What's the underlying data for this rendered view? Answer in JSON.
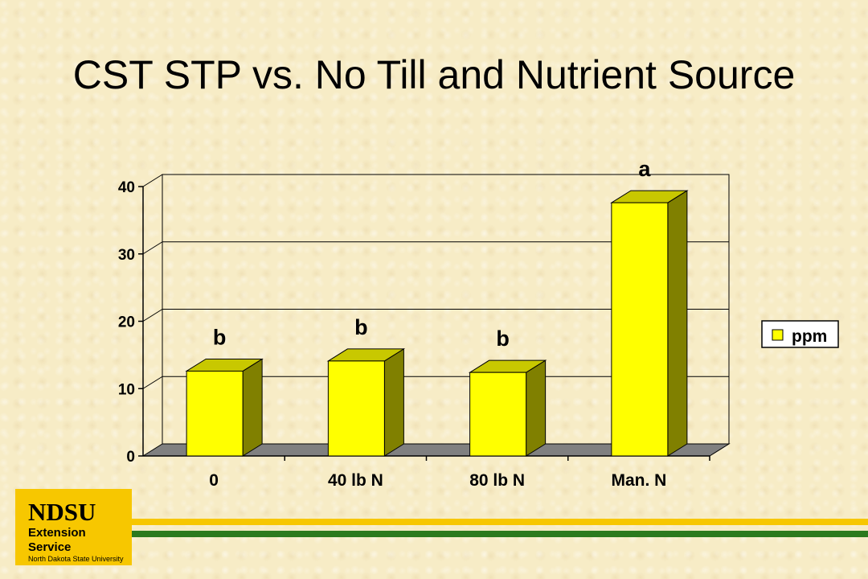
{
  "slide": {
    "title": "CST STP vs. No Till and Nutrient Source"
  },
  "logo": {
    "name": "NDSU",
    "line1": "Extension Service",
    "line2": "North Dakota State University"
  },
  "colors": {
    "bar_front": "#ffff00",
    "bar_top": "#c8c800",
    "bar_side": "#808000",
    "floor": "#808080",
    "logo_gold": "#f7c700",
    "stripe_green": "#2c7a1e"
  },
  "chart_data": {
    "type": "bar",
    "title": "",
    "xlabel": "",
    "ylabel": "",
    "categories": [
      "0",
      "40 lb N",
      "80 lb N",
      "Man. N"
    ],
    "series": [
      {
        "name": "ppm",
        "values": [
          12.6,
          14.1,
          12.4,
          37.6
        ]
      }
    ],
    "significance_labels": [
      "b",
      "b",
      "b",
      "a"
    ],
    "ylim": [
      0,
      40
    ],
    "yticks": [
      0,
      10,
      20,
      30,
      40
    ],
    "grid": true,
    "legend": "right",
    "style": "3d"
  }
}
